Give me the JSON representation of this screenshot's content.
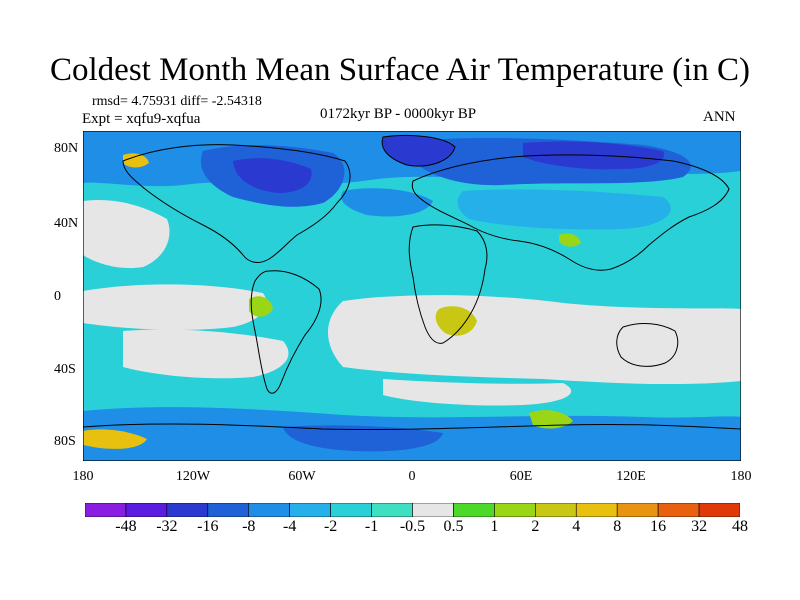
{
  "title": "Coldest Month Mean Surface Air Temperature (in C)",
  "stats_line": "rmsd= 4.75931  diff= -2.54318",
  "experiment_line": "Expt = xqfu9-xqfua",
  "period_line": "0172kyr BP - 0000kyr BP",
  "season_label": "ANN",
  "axes": {
    "lat_ticks": [
      "80N",
      "40N",
      "0",
      "40S",
      "80S"
    ],
    "lon_ticks": [
      "180",
      "120W",
      "60W",
      "0",
      "60E",
      "120E",
      "180"
    ]
  },
  "colorbar": {
    "labels": [
      "-48",
      "-32",
      "-16",
      "-8",
      "-4",
      "-2",
      "-1",
      "-0.5",
      "0.5",
      "1",
      "2",
      "4",
      "8",
      "16",
      "32",
      "48"
    ],
    "colors": [
      "#8a1ee0",
      "#5b1be0",
      "#2a3ad0",
      "#1f62d8",
      "#1e8ee6",
      "#25b0ea",
      "#2ad0d8",
      "#3fe0c2",
      "#e6e6e6",
      "#4cd92a",
      "#9ad616",
      "#c8c814",
      "#e8c010",
      "#e89410",
      "#e86010",
      "#e03808"
    ]
  },
  "field_colors": {
    "land_outline": "#000000",
    "neutral": "#e6e6e6",
    "cold_light": "#2ad0d8",
    "cold_mid": "#25b0ea",
    "cold_strong": "#1e8ee6",
    "cold_deep": "#1f62d8",
    "cold_extreme": "#2a3ad0",
    "warm_light": "#9ad616",
    "warm_mid": "#c8c814",
    "warm_strong": "#e8c010"
  }
}
